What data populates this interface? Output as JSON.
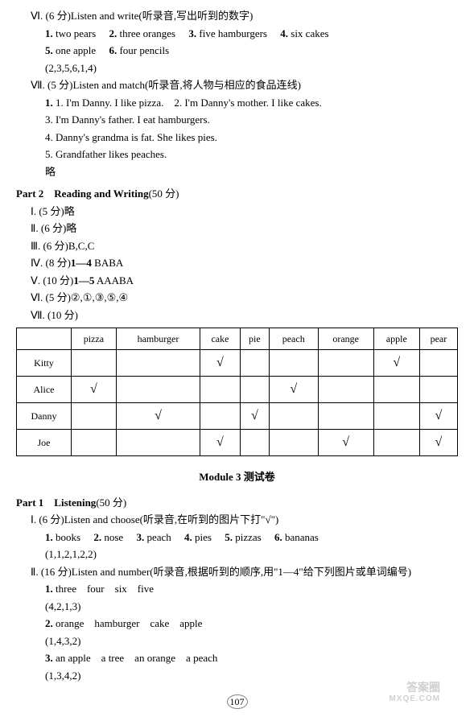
{
  "sec_vi": {
    "heading": "Ⅵ. (6 分)Listen and write(听录音,写出听到的数字)",
    "items": [
      {
        "n": "1.",
        "t": "two pears"
      },
      {
        "n": "2.",
        "t": "three oranges"
      },
      {
        "n": "3.",
        "t": "five hamburgers"
      },
      {
        "n": "4.",
        "t": "six cakes"
      },
      {
        "n": "5.",
        "t": "one apple"
      },
      {
        "n": "6.",
        "t": "four pencils"
      }
    ],
    "answers": "(2,3,5,6,1,4)"
  },
  "sec_vii": {
    "heading": "Ⅶ. (5 分)Listen and match(听录音,将人物与相应的食品连线)",
    "lines": [
      "1. I'm Danny. I like pizza.　2. I'm Danny's mother. I like cakes.",
      "3. I'm Danny's father. I eat hamburgers.",
      "4. Danny's grandma is fat. She likes pies.",
      "5. Grandfather likes peaches."
    ],
    "omit": "略"
  },
  "part2": {
    "header_bold": "Part 2　Reading and Writing",
    "header_rest": "(50 分)",
    "i": "Ⅰ. (5 分)略",
    "ii": "Ⅱ. (6 分)略",
    "iii": "Ⅲ. (6 分)B,C,C",
    "iv_pre": "Ⅳ. (8 分)",
    "iv_bold": "1—4",
    "iv_rest": " BABA",
    "v_pre": "Ⅴ. (10 分)",
    "v_bold": "1—5",
    "v_rest": " AAABA",
    "vi": "Ⅵ. (5 分)②,①,③,⑤,④",
    "vii": "Ⅶ. (10 分)"
  },
  "table": {
    "headers": [
      "",
      "pizza",
      "hamburger",
      "cake",
      "pie",
      "peach",
      "orange",
      "apple",
      "pear"
    ],
    "rows": [
      {
        "name": "Kitty",
        "cells": [
          "",
          "",
          "√",
          "",
          "",
          "",
          "√",
          ""
        ]
      },
      {
        "name": "Alice",
        "cells": [
          "√",
          "",
          "",
          "",
          "√",
          "",
          "",
          ""
        ]
      },
      {
        "name": "Danny",
        "cells": [
          "",
          "√",
          "",
          "√",
          "",
          "",
          "",
          "√"
        ]
      },
      {
        "name": "Joe",
        "cells": [
          "",
          "",
          "√",
          "",
          "",
          "√",
          "",
          "√"
        ]
      }
    ]
  },
  "module3": {
    "title": "Module 3 测试卷",
    "part1_bold": "Part 1　Listening",
    "part1_rest": "(50 分)",
    "i": {
      "heading": "Ⅰ. (6 分)Listen and choose(听录音,在听到的图片下打\"√\")",
      "row": [
        {
          "n": "1.",
          "t": "books"
        },
        {
          "n": "2.",
          "t": "nose"
        },
        {
          "n": "3.",
          "t": "peach"
        },
        {
          "n": "4.",
          "t": "pies"
        },
        {
          "n": "5.",
          "t": "pizzas"
        },
        {
          "n": "6.",
          "t": "bananas"
        }
      ],
      "ans": "(1,1,2,1,2,2)"
    },
    "ii": {
      "heading": "Ⅱ. (16 分)Listen and number(听录音,根据听到的顺序,用\"1—4\"给下列图片或单词编号)",
      "l1a": "1. three　four　six　five",
      "l1b": "(4,2,1,3)",
      "l2a": "2. orange　hamburger　cake　apple",
      "l2b": "(1,4,3,2)",
      "l3a": "3. an apple　a tree　an orange　a peach",
      "l3b": "(1,3,4,2)"
    }
  },
  "page": "107",
  "wm1": "答案圈",
  "wm2": "MXQE.COM"
}
